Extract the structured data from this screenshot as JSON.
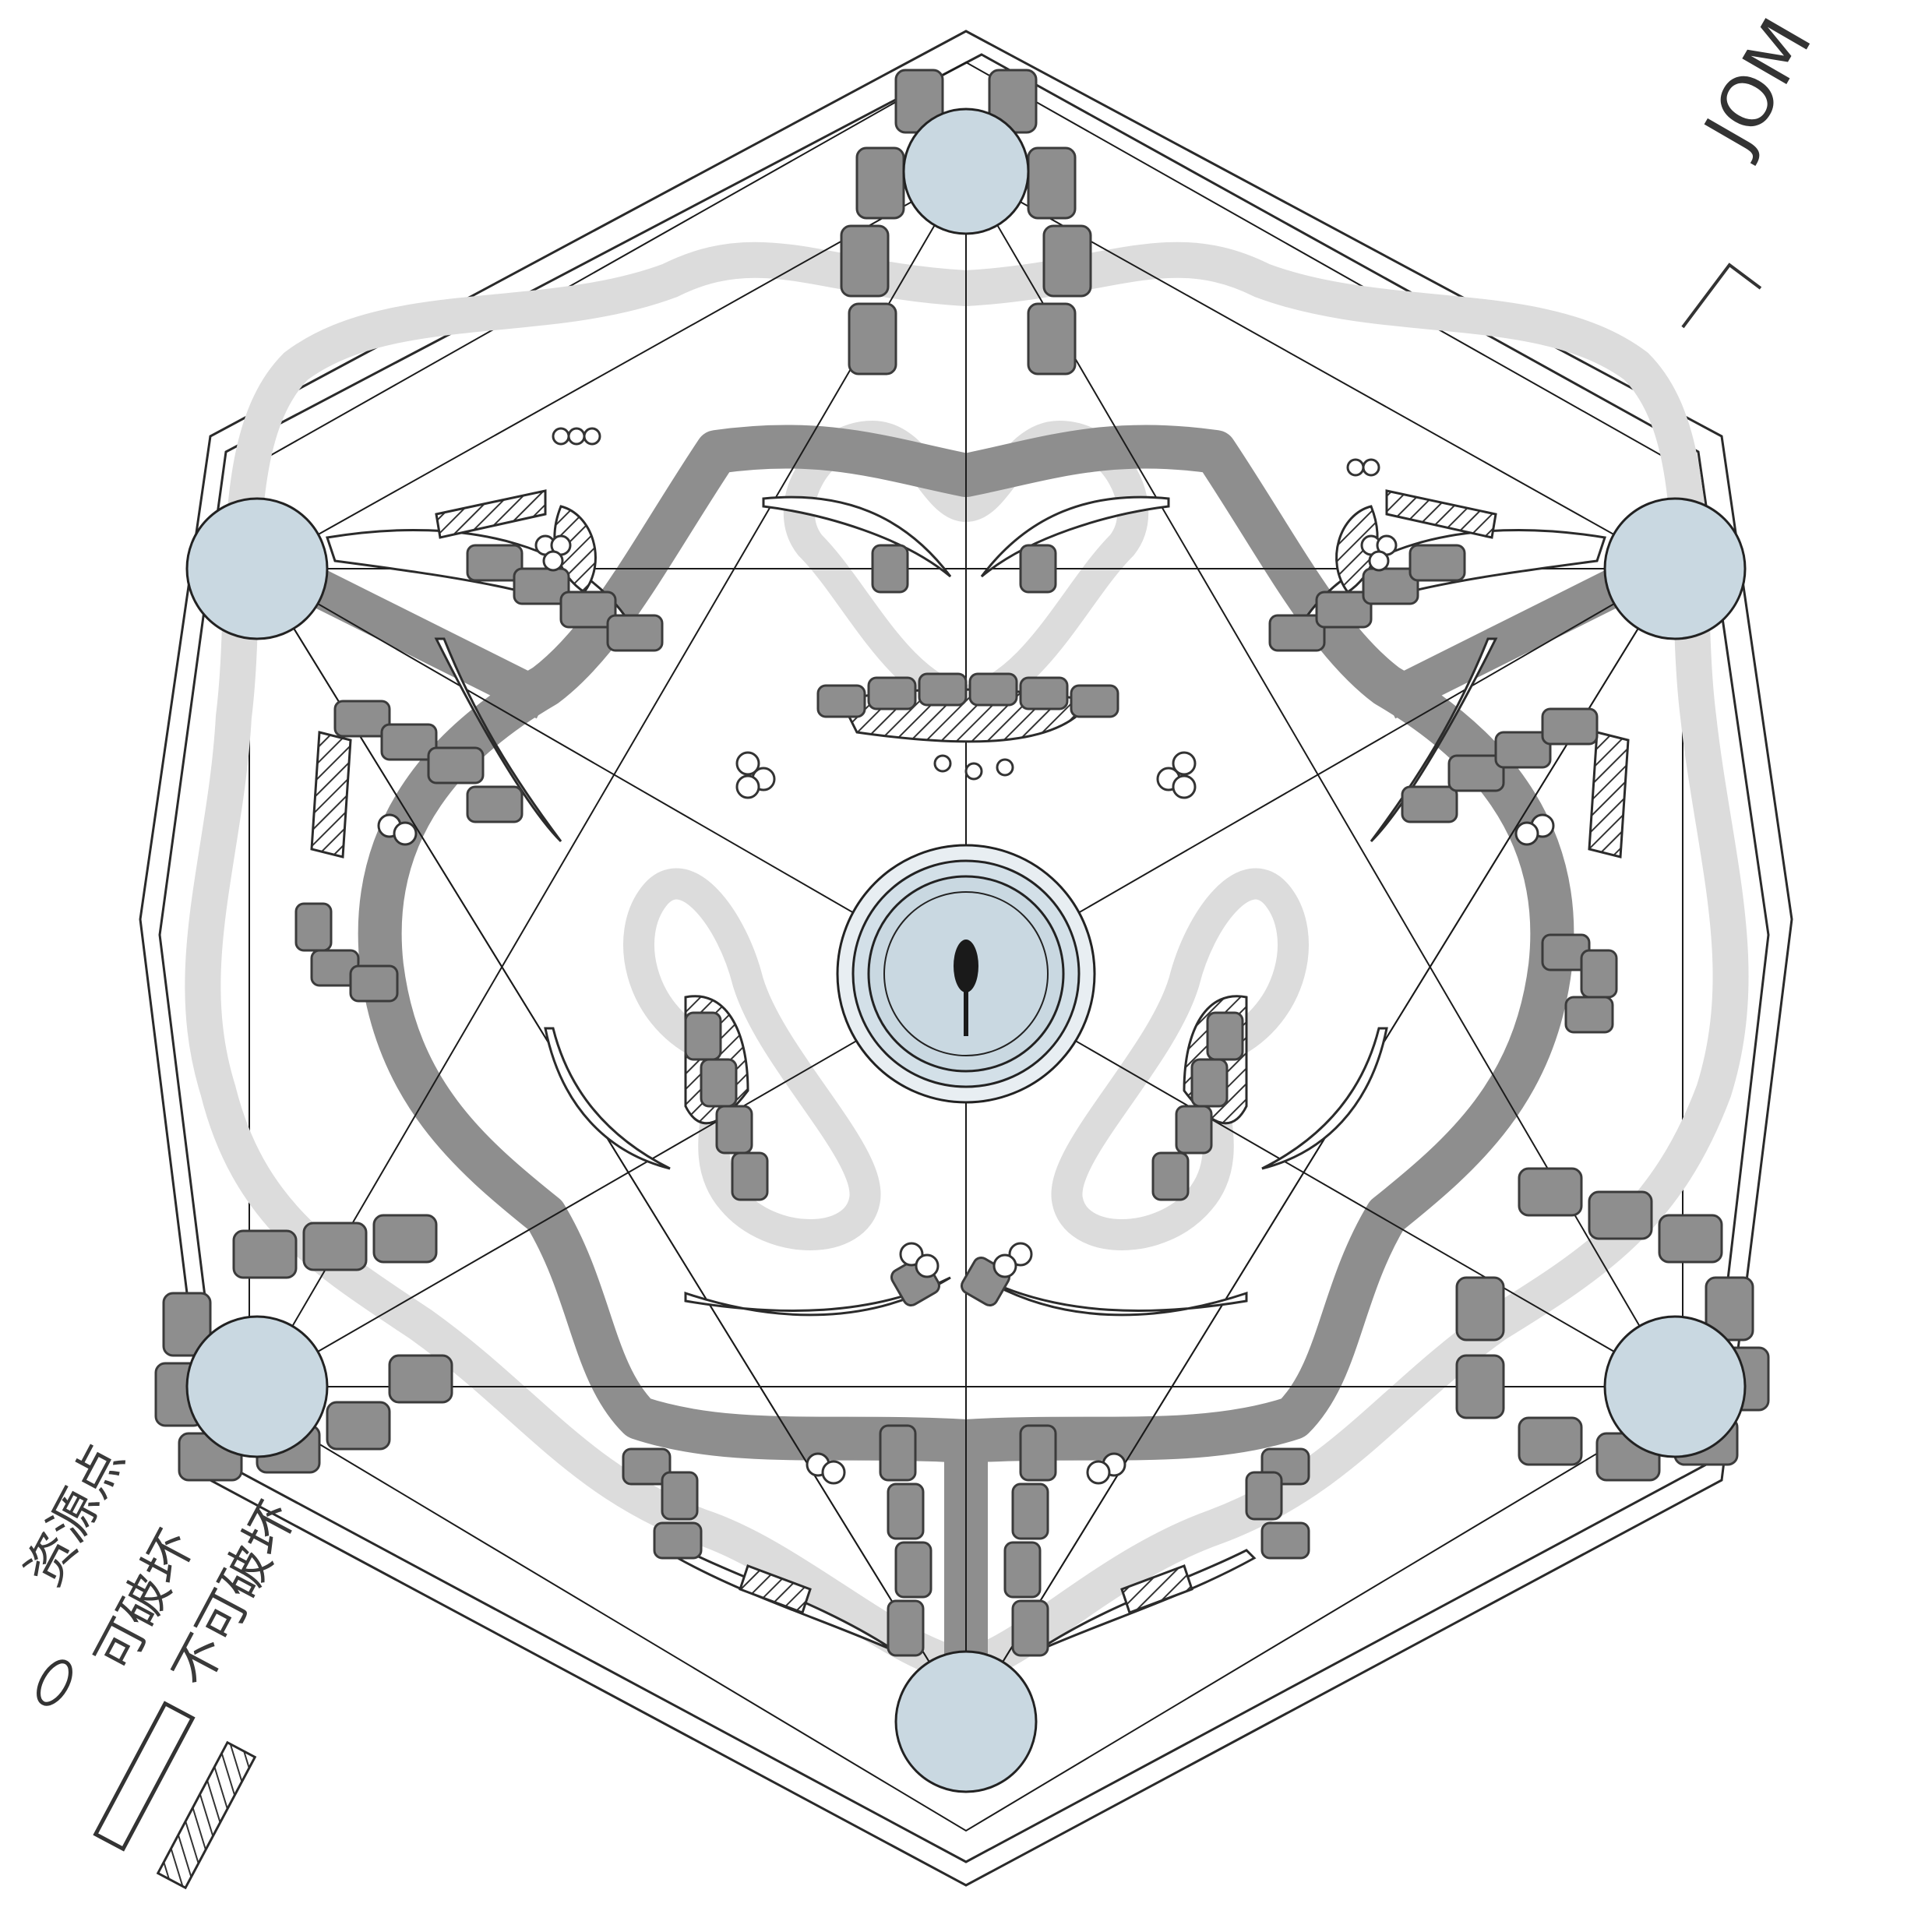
{
  "map": {
    "signature": "JOM",
    "legend": {
      "items": [
        {
          "key": "resource-point",
          "label": "资源点"
        },
        {
          "key": "destructible",
          "label": "可破坏"
        },
        {
          "key": "indestructible",
          "label": "不可破坏"
        }
      ]
    },
    "colors": {
      "base": "#c9d8e1",
      "main_path": "#8e8e8e",
      "secondary_path": "#dcdcdc",
      "rock": "#8e8e8e",
      "outline": "#2a2a2a"
    },
    "bases": {
      "corner_count": 6,
      "center": "main-base"
    },
    "symmetry": "six-fold"
  }
}
